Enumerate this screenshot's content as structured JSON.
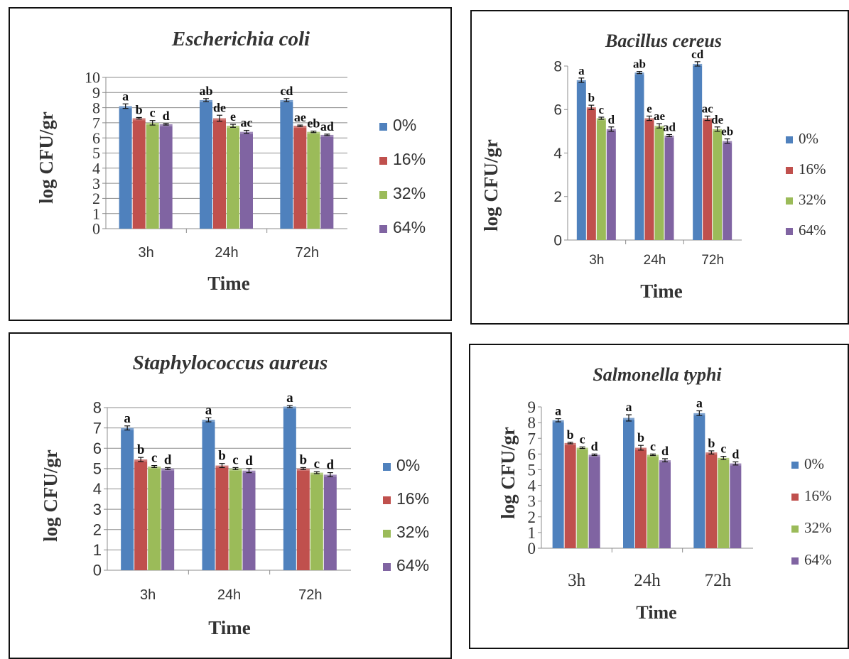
{
  "chart_data": [
    {
      "type": "bar",
      "title": "Escherichia coli",
      "ylabel": "log CFU/gr",
      "xlabel": "Time",
      "categories": [
        "3h",
        "24h",
        "72h"
      ],
      "ylim": [
        0,
        10
      ],
      "yticks": [
        "0",
        "1",
        "2",
        "3",
        "4",
        "5",
        "6",
        "7",
        "8",
        "9",
        "10"
      ],
      "grid": true,
      "legend": "right",
      "series": [
        {
          "name": "0%",
          "color": "#4F81BD",
          "values": [
            8.1,
            8.5,
            8.5
          ],
          "errors": [
            0.15,
            0.1,
            0.1
          ],
          "labels": [
            "a",
            "ab",
            "cd"
          ]
        },
        {
          "name": "16%",
          "color": "#C0504D",
          "values": [
            7.3,
            7.3,
            6.8
          ],
          "errors": [
            0.05,
            0.2,
            0.05
          ],
          "labels": [
            "b",
            "de",
            "ae"
          ]
        },
        {
          "name": "32%",
          "color": "#9BBB59",
          "values": [
            7.0,
            6.8,
            6.4
          ],
          "errors": [
            0.15,
            0.1,
            0.05
          ],
          "labels": [
            "c",
            "e",
            "eb"
          ]
        },
        {
          "name": "64%",
          "color": "#8064A2",
          "values": [
            6.9,
            6.4,
            6.2
          ],
          "errors": [
            0.05,
            0.1,
            0.05
          ],
          "labels": [
            "d",
            "ac",
            "ad"
          ]
        }
      ]
    },
    {
      "type": "bar",
      "title": "Bacillus cereus",
      "ylabel": "log CFU/gr",
      "xlabel": "Time",
      "categories": [
        "3h",
        "24h",
        "72h"
      ],
      "ylim": [
        0,
        8
      ],
      "yticks": [
        "0",
        "2",
        "4",
        "6",
        "8"
      ],
      "grid": false,
      "legend": "right",
      "series": [
        {
          "name": "0%",
          "color": "#4F81BD",
          "values": [
            7.35,
            7.7,
            8.1
          ],
          "errors": [
            0.1,
            0.05,
            0.1
          ],
          "labels": [
            "a",
            "ab",
            "cd"
          ]
        },
        {
          "name": "16%",
          "color": "#C0504D",
          "values": [
            6.1,
            5.6,
            5.6
          ],
          "errors": [
            0.1,
            0.1,
            0.1
          ],
          "labels": [
            "b",
            "e",
            "ac"
          ]
        },
        {
          "name": "32%",
          "color": "#9BBB59",
          "values": [
            5.6,
            5.25,
            5.1
          ],
          "errors": [
            0.05,
            0.1,
            0.1
          ],
          "labels": [
            "c",
            "ae",
            "de"
          ]
        },
        {
          "name": "64%",
          "color": "#8064A2",
          "values": [
            5.1,
            4.8,
            4.55
          ],
          "errors": [
            0.1,
            0.05,
            0.1
          ],
          "labels": [
            "d",
            "ad",
            "eb"
          ]
        }
      ]
    },
    {
      "type": "bar",
      "title": "Staphylococcus aureus",
      "ylabel": "log CFU/gr",
      "xlabel": "Time",
      "categories": [
        "3h",
        "24h",
        "72h"
      ],
      "ylim": [
        0,
        8
      ],
      "yticks": [
        "0",
        "1",
        "2",
        "3",
        "4",
        "5",
        "6",
        "7",
        "8"
      ],
      "grid": true,
      "legend": "right",
      "series": [
        {
          "name": "0%",
          "color": "#4F81BD",
          "values": [
            7.0,
            7.4,
            8.05
          ],
          "errors": [
            0.1,
            0.1,
            0.05
          ],
          "labels": [
            "a",
            "a",
            "a"
          ]
        },
        {
          "name": "16%",
          "color": "#C0504D",
          "values": [
            5.45,
            5.15,
            5.0
          ],
          "errors": [
            0.1,
            0.1,
            0.05
          ],
          "labels": [
            "b",
            "b",
            "b"
          ]
        },
        {
          "name": "32%",
          "color": "#9BBB59",
          "values": [
            5.1,
            5.0,
            4.8
          ],
          "errors": [
            0.05,
            0.05,
            0.05
          ],
          "labels": [
            "c",
            "c",
            "c"
          ]
        },
        {
          "name": "64%",
          "color": "#8064A2",
          "values": [
            5.0,
            4.9,
            4.7
          ],
          "errors": [
            0.05,
            0.1,
            0.1
          ],
          "labels": [
            "d",
            "d",
            "d"
          ]
        }
      ]
    },
    {
      "type": "bar",
      "title": "Salmonella typhi",
      "ylabel": "log CFU/gr",
      "xlabel": "Time",
      "categories": [
        "3h",
        "24h",
        "72h"
      ],
      "ylim": [
        0,
        9
      ],
      "yticks": [
        "0",
        "1",
        "2",
        "3",
        "4",
        "5",
        "6",
        "7",
        "8",
        "9"
      ],
      "grid": false,
      "legend": "right",
      "series": [
        {
          "name": "0%",
          "color": "#4F81BD",
          "values": [
            8.15,
            8.3,
            8.6
          ],
          "errors": [
            0.1,
            0.2,
            0.15
          ],
          "labels": [
            "a",
            "a",
            "a"
          ]
        },
        {
          "name": "16%",
          "color": "#C0504D",
          "values": [
            6.7,
            6.4,
            6.1
          ],
          "errors": [
            0.05,
            0.15,
            0.1
          ],
          "labels": [
            "b",
            "b",
            "b"
          ]
        },
        {
          "name": "32%",
          "color": "#9BBB59",
          "values": [
            6.4,
            5.95,
            5.75
          ],
          "errors": [
            0.05,
            0.05,
            0.1
          ],
          "labels": [
            "c",
            "c",
            "c"
          ]
        },
        {
          "name": "64%",
          "color": "#8064A2",
          "values": [
            5.95,
            5.6,
            5.4
          ],
          "errors": [
            0.05,
            0.1,
            0.1
          ],
          "labels": [
            "d",
            "d",
            "d"
          ]
        }
      ]
    }
  ]
}
